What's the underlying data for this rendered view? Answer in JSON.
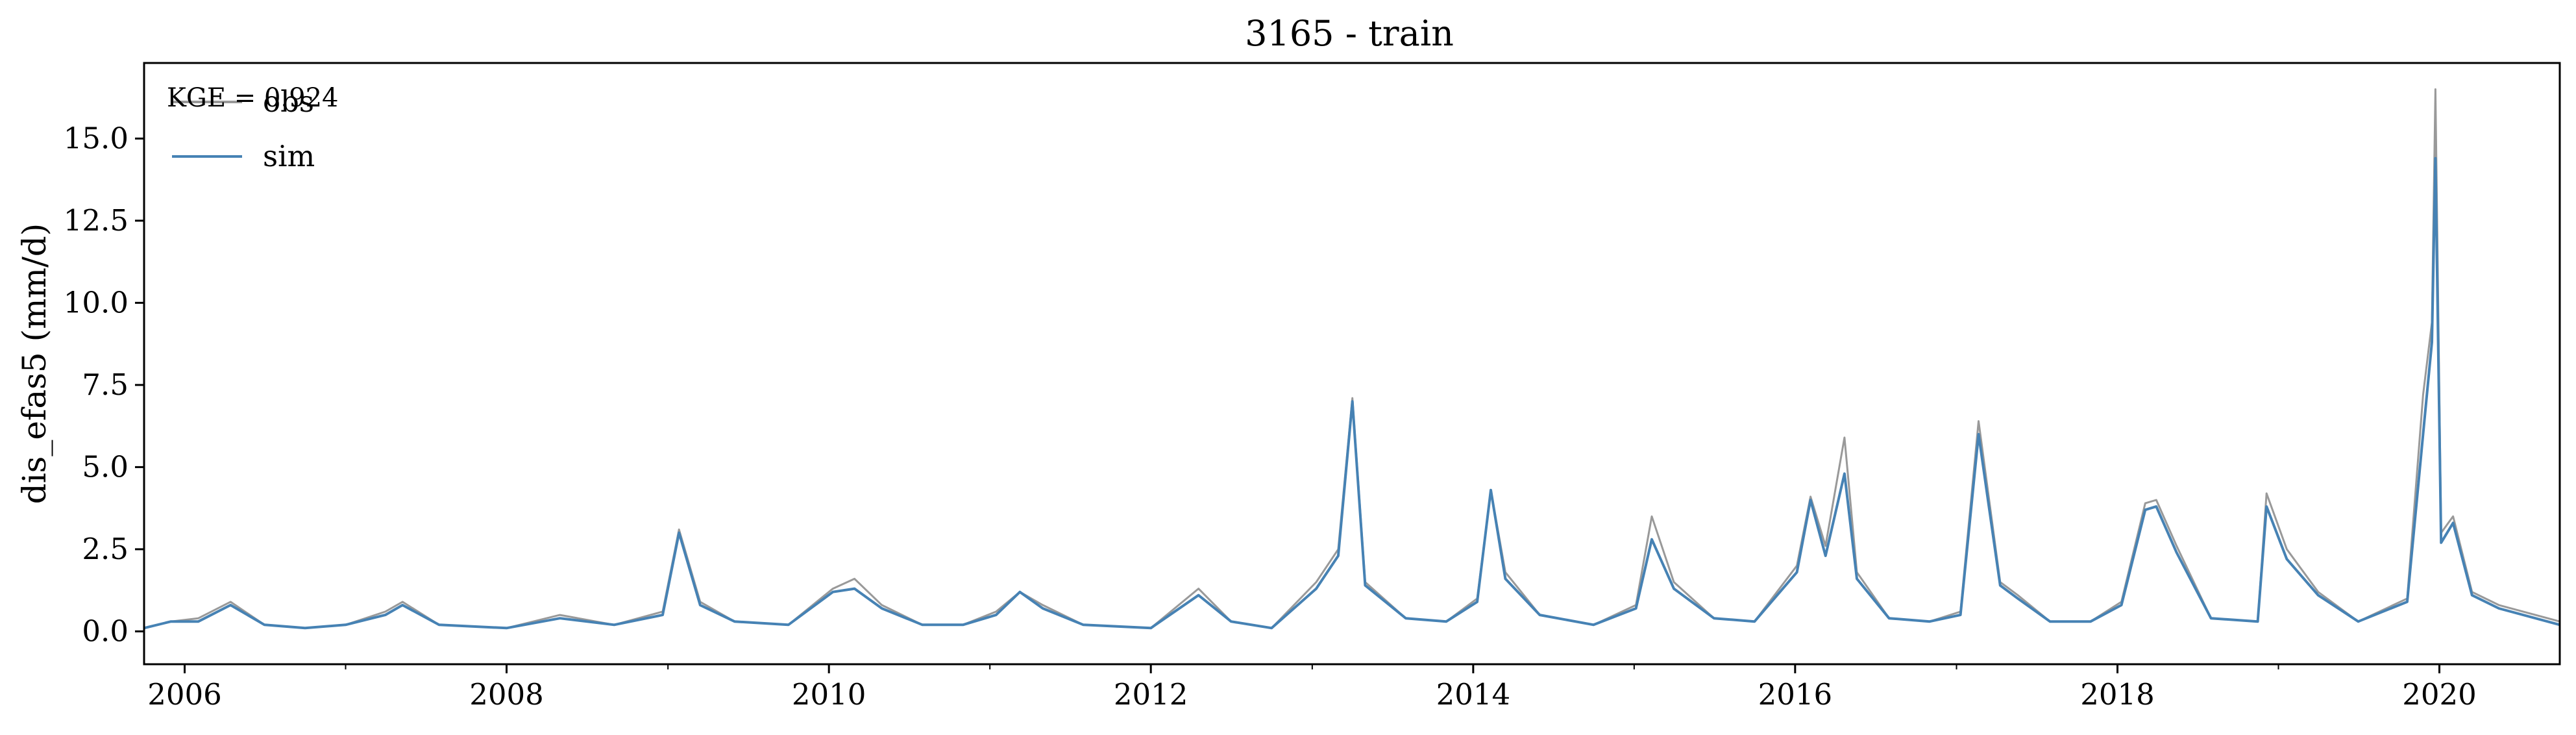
{
  "chart_data": {
    "type": "line",
    "title": "3165 - train",
    "xlabel": "",
    "ylabel": "dis_efas5 (mm/d)",
    "annotation": "KGE = 0.924",
    "xlim": [
      "2005-10-01",
      "2020-09-30"
    ],
    "ylim": [
      -1.0,
      17.3
    ],
    "x_tick_labels": [
      "2006",
      "2008",
      "2010",
      "2012",
      "2014",
      "2016",
      "2018",
      "2020"
    ],
    "y_tick_labels": [
      "0.0",
      "2.5",
      "5.0",
      "7.5",
      "10.0",
      "12.5",
      "15.0"
    ],
    "grid": false,
    "legend_position": "top-left",
    "series": [
      {
        "name": "obs",
        "color": "#999999",
        "x": [
          "2005-10-01",
          "2005-12-01",
          "2006-02-01",
          "2006-04-15",
          "2006-07-01",
          "2006-10-01",
          "2007-01-01",
          "2007-04-01",
          "2007-05-10",
          "2007-08-01",
          "2008-01-01",
          "2008-05-01",
          "2008-09-01",
          "2008-12-20",
          "2009-01-26",
          "2009-03-15",
          "2009-06-01",
          "2009-10-01",
          "2010-01-10",
          "2010-02-28",
          "2010-05-01",
          "2010-08-01",
          "2010-11-01",
          "2011-01-15",
          "2011-03-10",
          "2011-05-01",
          "2011-08-01",
          "2012-01-01",
          "2012-04-18",
          "2012-07-01",
          "2012-10-01",
          "2013-01-10",
          "2013-03-01",
          "2013-04-02",
          "2013-05-01",
          "2013-08-01",
          "2013-11-01",
          "2014-01-10",
          "2014-02-10",
          "2014-03-15",
          "2014-06-01",
          "2014-10-01",
          "2015-01-05",
          "2015-02-10",
          "2015-04-01",
          "2015-07-01",
          "2015-10-01",
          "2016-01-05",
          "2016-02-05",
          "2016-03-10",
          "2016-04-22",
          "2016-05-20",
          "2016-08-01",
          "2016-11-01",
          "2017-01-10",
          "2017-02-20",
          "2017-04-10",
          "2017-05-20",
          "2017-08-01",
          "2017-11-01",
          "2018-01-10",
          "2018-03-05",
          "2018-03-30",
          "2018-05-15",
          "2018-08-01",
          "2018-11-15",
          "2018-12-05",
          "2019-01-20",
          "2019-04-01",
          "2019-07-01",
          "2019-10-20",
          "2019-11-25",
          "2019-12-15",
          "2019-12-23",
          "2020-01-05",
          "2020-02-01",
          "2020-03-15",
          "2020-05-15",
          "2020-09-30"
        ],
        "y": [
          0.1,
          0.3,
          0.4,
          0.9,
          0.2,
          0.1,
          0.2,
          0.6,
          0.9,
          0.2,
          0.1,
          0.5,
          0.2,
          0.6,
          3.1,
          0.9,
          0.3,
          0.2,
          1.3,
          1.6,
          0.8,
          0.2,
          0.2,
          0.6,
          1.2,
          0.8,
          0.2,
          0.1,
          1.3,
          0.3,
          0.1,
          1.5,
          2.5,
          7.1,
          1.5,
          0.4,
          0.3,
          1.0,
          4.3,
          1.8,
          0.5,
          0.2,
          0.8,
          3.5,
          1.5,
          0.4,
          0.3,
          2.0,
          4.1,
          2.6,
          5.9,
          1.8,
          0.4,
          0.3,
          0.6,
          6.4,
          1.5,
          1.1,
          0.3,
          0.3,
          0.9,
          3.9,
          4.0,
          2.6,
          0.4,
          0.3,
          4.2,
          2.5,
          1.2,
          0.3,
          1.0,
          7.2,
          9.4,
          16.5,
          3.0,
          3.5,
          1.2,
          0.8,
          0.3
        ]
      },
      {
        "name": "sim",
        "color": "#4682b4",
        "x": [
          "2005-10-01",
          "2005-12-01",
          "2006-02-01",
          "2006-04-15",
          "2006-07-01",
          "2006-10-01",
          "2007-01-01",
          "2007-04-01",
          "2007-05-10",
          "2007-08-01",
          "2008-01-01",
          "2008-05-01",
          "2008-09-01",
          "2008-12-20",
          "2009-01-26",
          "2009-03-15",
          "2009-06-01",
          "2009-10-01",
          "2010-01-10",
          "2010-02-28",
          "2010-05-01",
          "2010-08-01",
          "2010-11-01",
          "2011-01-15",
          "2011-03-10",
          "2011-05-01",
          "2011-08-01",
          "2012-01-01",
          "2012-04-18",
          "2012-07-01",
          "2012-10-01",
          "2013-01-10",
          "2013-03-01",
          "2013-04-02",
          "2013-05-01",
          "2013-08-01",
          "2013-11-01",
          "2014-01-10",
          "2014-02-10",
          "2014-03-15",
          "2014-06-01",
          "2014-10-01",
          "2015-01-05",
          "2015-02-10",
          "2015-04-01",
          "2015-07-01",
          "2015-10-01",
          "2016-01-05",
          "2016-02-05",
          "2016-03-10",
          "2016-04-22",
          "2016-05-20",
          "2016-08-01",
          "2016-11-01",
          "2017-01-10",
          "2017-02-20",
          "2017-04-10",
          "2017-05-20",
          "2017-08-01",
          "2017-11-01",
          "2018-01-10",
          "2018-03-05",
          "2018-03-30",
          "2018-05-15",
          "2018-08-01",
          "2018-11-15",
          "2018-12-05",
          "2019-01-20",
          "2019-04-01",
          "2019-07-01",
          "2019-10-20",
          "2019-11-25",
          "2019-12-15",
          "2019-12-23",
          "2020-01-05",
          "2020-02-01",
          "2020-03-15",
          "2020-05-15",
          "2020-09-30"
        ],
        "y": [
          0.1,
          0.3,
          0.3,
          0.8,
          0.2,
          0.1,
          0.2,
          0.5,
          0.8,
          0.2,
          0.1,
          0.4,
          0.2,
          0.5,
          3.0,
          0.8,
          0.3,
          0.2,
          1.2,
          1.3,
          0.7,
          0.2,
          0.2,
          0.5,
          1.2,
          0.7,
          0.2,
          0.1,
          1.1,
          0.3,
          0.1,
          1.3,
          2.3,
          7.0,
          1.4,
          0.4,
          0.3,
          0.9,
          4.3,
          1.6,
          0.5,
          0.2,
          0.7,
          2.8,
          1.3,
          0.4,
          0.3,
          1.8,
          4.0,
          2.3,
          4.8,
          1.6,
          0.4,
          0.3,
          0.5,
          6.0,
          1.4,
          1.0,
          0.3,
          0.3,
          0.8,
          3.7,
          3.8,
          2.4,
          0.4,
          0.3,
          3.8,
          2.2,
          1.1,
          0.3,
          0.9,
          6.0,
          8.8,
          14.4,
          2.7,
          3.3,
          1.1,
          0.7,
          0.2
        ]
      }
    ]
  }
}
